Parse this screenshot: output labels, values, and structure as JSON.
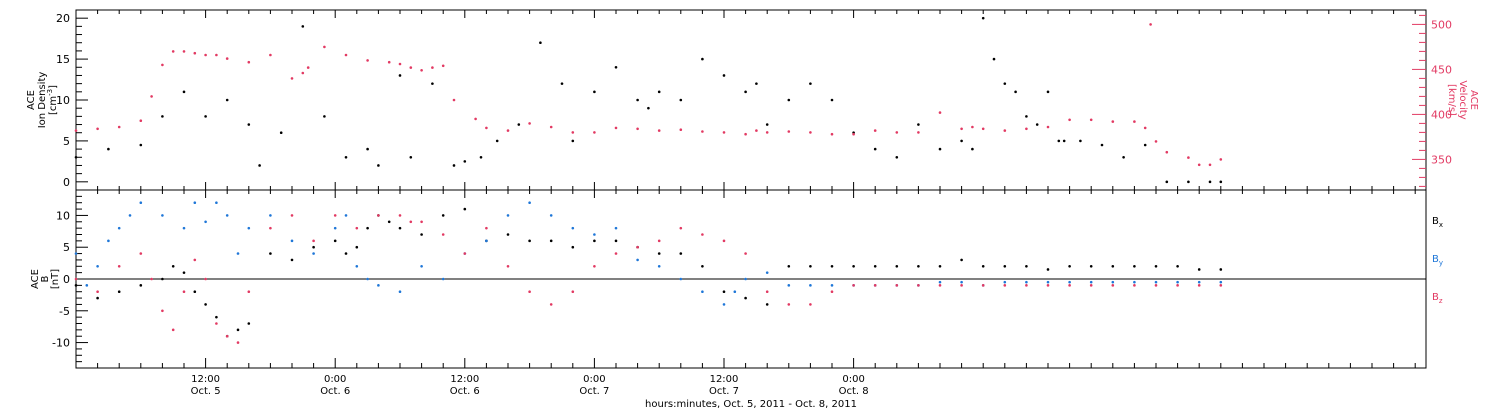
{
  "colors": {
    "black": "#000000",
    "blue": "#1f77d8",
    "red": "#e23a63",
    "axis": "#000000"
  },
  "chart_data": [
    {
      "type": "scatter",
      "panel": "top",
      "ylabel": [
        "ACE",
        "Ion Density",
        "[cm",
        "-3",
        "]"
      ],
      "y2label": [
        "ACE",
        "Velocity",
        "[km/s]"
      ],
      "ylim": [
        -1,
        21
      ],
      "y2lim": [
        316,
        516
      ],
      "yticks": [
        "0",
        "5",
        "10",
        "15",
        "20"
      ],
      "y2ticks": [
        "350",
        "400",
        "450",
        "500"
      ],
      "series": [
        {
          "color": "black",
          "x": [
            0,
            3,
            6,
            8,
            10,
            12,
            14,
            16,
            17,
            19,
            21,
            23,
            25,
            27,
            28,
            30,
            31,
            33,
            35,
            36,
            37.5,
            39,
            41,
            43,
            45,
            46,
            48,
            50,
            52,
            53,
            54,
            56,
            58,
            60,
            62,
            63,
            64,
            66,
            68,
            70,
            72,
            74,
            76,
            78,
            80,
            82,
            83,
            84,
            85,
            86,
            87,
            88,
            89,
            90,
            91,
            91.5,
            93,
            95,
            97,
            99,
            101,
            103,
            105,
            106
          ],
          "y": [
            3,
            4,
            4.5,
            8,
            11,
            8,
            10,
            7,
            2,
            6,
            19,
            8,
            3,
            4,
            2,
            13,
            3,
            12,
            2,
            2.5,
            3,
            5,
            7,
            17,
            12,
            5,
            11,
            14,
            10,
            9,
            11,
            10,
            15,
            13,
            11,
            12,
            7,
            10,
            12,
            10,
            6,
            4,
            3,
            7,
            4,
            5,
            4,
            20,
            15,
            12,
            11,
            8,
            7,
            11,
            5,
            5,
            5,
            4.5,
            3,
            4.5,
            0,
            0,
            0,
            0
          ]
        },
        {
          "color": "red",
          "x": [
            0,
            2,
            4,
            6,
            7,
            8,
            9,
            10,
            11,
            12,
            13,
            14,
            16,
            18,
            20,
            21,
            21.5,
            23,
            25,
            27,
            29,
            30,
            31,
            32,
            33,
            34,
            35,
            37,
            38,
            40,
            42,
            44,
            46,
            48,
            50,
            52,
            54,
            56,
            58,
            60,
            62,
            63,
            64,
            66,
            68,
            70,
            72,
            74,
            76,
            78,
            80,
            82,
            83,
            84,
            86,
            88,
            90,
            92,
            94,
            96,
            98,
            99,
            99.5,
            100,
            101,
            103,
            104,
            105,
            106
          ],
          "y": [
            382,
            384,
            386,
            393,
            420,
            455,
            470,
            470,
            468,
            466,
            466,
            462,
            458,
            466,
            440,
            446,
            452,
            475,
            466,
            460,
            458,
            456,
            452,
            449,
            452,
            454,
            416,
            395,
            385,
            382,
            390,
            386,
            380,
            380,
            385,
            384,
            382,
            383,
            381,
            380,
            378,
            382,
            380,
            381,
            380,
            378,
            378,
            382,
            380,
            380,
            402,
            384,
            386,
            384,
            382,
            384,
            386,
            394,
            394,
            392,
            392,
            385,
            500,
            370,
            358,
            352,
            344,
            344,
            350
          ]
        }
      ]
    },
    {
      "type": "scatter",
      "panel": "bottom",
      "ylabel": [
        "ACE",
        "B",
        "[nT]"
      ],
      "ylim": [
        -14,
        14
      ],
      "yticks": [
        "-10",
        "-5",
        "0",
        "5",
        "10"
      ],
      "legend": [
        {
          "label": "B",
          "sub": "x",
          "color": "black"
        },
        {
          "label": "B",
          "sub": "y",
          "color": "blue"
        },
        {
          "label": "B",
          "sub": "z",
          "color": "red"
        }
      ],
      "xticks": [
        {
          "t": "12:00",
          "d": "Oct. 5"
        },
        {
          "t": "0:00",
          "d": "Oct. 6"
        },
        {
          "t": "12:00",
          "d": "Oct. 6"
        },
        {
          "t": "0:00",
          "d": "Oct. 7"
        },
        {
          "t": "12:00",
          "d": "Oct. 7"
        },
        {
          "t": "0:00",
          "d": "Oct. 8"
        }
      ],
      "xlabel": "hours:minutes, Oct.  5, 2011 - Oct.  8, 2011",
      "series": [
        {
          "color": "black",
          "x": [
            0,
            2,
            4,
            6,
            8,
            9,
            10,
            11,
            12,
            13,
            14,
            15,
            16,
            18,
            20,
            22,
            24,
            25,
            26,
            27,
            28,
            29,
            30,
            32,
            34,
            36,
            38,
            40,
            42,
            44,
            46,
            48,
            50,
            52,
            54,
            56,
            58,
            60,
            62,
            64,
            66,
            68,
            70,
            72,
            74,
            76,
            78,
            80,
            82,
            84,
            86,
            88,
            90,
            92,
            94,
            96,
            98,
            100,
            102,
            104,
            106
          ],
          "y": [
            -1,
            -3,
            -2,
            -1,
            0,
            2,
            1,
            -2,
            -4,
            -6,
            -9,
            -8,
            -7,
            4,
            3,
            5,
            6,
            4,
            5,
            8,
            10,
            9,
            8,
            7,
            10,
            11,
            6,
            7,
            6,
            6,
            5,
            6,
            6,
            5,
            4,
            4,
            2,
            -2,
            -3,
            -4,
            2,
            2,
            2,
            2,
            2,
            2,
            2,
            2,
            3,
            2,
            2,
            2,
            1.5,
            2,
            2,
            2,
            2,
            2,
            2,
            1.5,
            1.5
          ]
        },
        {
          "color": "blue",
          "x": [
            0,
            1,
            2,
            3,
            4,
            5,
            6,
            8,
            10,
            11,
            12,
            13,
            14,
            15,
            16,
            18,
            20,
            22,
            24,
            25,
            26,
            27,
            28,
            30,
            32,
            34,
            36,
            38,
            40,
            42,
            44,
            46,
            48,
            50,
            52,
            54,
            56,
            58,
            60,
            61,
            62,
            64,
            66,
            68,
            70,
            72,
            74,
            76,
            78,
            80,
            82,
            84,
            86,
            88,
            90,
            92,
            94,
            96,
            98,
            100,
            102,
            104,
            106
          ],
          "y": [
            4,
            -1,
            2,
            6,
            8,
            10,
            12,
            10,
            8,
            12,
            9,
            12,
            10,
            4,
            8,
            10,
            6,
            4,
            8,
            10,
            2,
            0,
            -1,
            -2,
            2,
            0,
            4,
            6,
            10,
            12,
            10,
            8,
            7,
            8,
            3,
            2,
            0,
            -2,
            -4,
            -2,
            0,
            1,
            -1,
            -1,
            -1,
            -1,
            -1,
            -1,
            -1,
            -0.5,
            -0.5,
            -1,
            -0.5,
            -0.5,
            -0.5,
            -0.5,
            -0.5,
            -0.5,
            -0.5,
            -0.5,
            -0.5,
            -0.5,
            -0.5
          ]
        },
        {
          "color": "red",
          "x": [
            0,
            2,
            4,
            6,
            7,
            8,
            9,
            10,
            11,
            12,
            13,
            14,
            15,
            16,
            18,
            20,
            22,
            24,
            26,
            28,
            30,
            31,
            32,
            34,
            36,
            38,
            40,
            42,
            44,
            46,
            48,
            50,
            52,
            54,
            56,
            58,
            60,
            62,
            64,
            66,
            68,
            70,
            72,
            74,
            76,
            78,
            80,
            82,
            84,
            86,
            88,
            90,
            92,
            94,
            96,
            98,
            100,
            102,
            104,
            106
          ],
          "y": [
            0,
            -2,
            2,
            4,
            0,
            -5,
            -8,
            -2,
            3,
            0,
            -7,
            -9,
            -10,
            -2,
            8,
            10,
            6,
            10,
            8,
            10,
            10,
            9,
            9,
            7,
            4,
            8,
            2,
            -2,
            -4,
            -2,
            2,
            4,
            5,
            6,
            8,
            7,
            6,
            4,
            -2,
            -4,
            -4,
            -2,
            -1,
            -1,
            -1,
            -1,
            -1,
            -1,
            -1,
            -1,
            -1,
            -1,
            -1,
            -1,
            -1,
            -1,
            -1,
            -1,
            -1,
            -1
          ]
        }
      ]
    }
  ]
}
